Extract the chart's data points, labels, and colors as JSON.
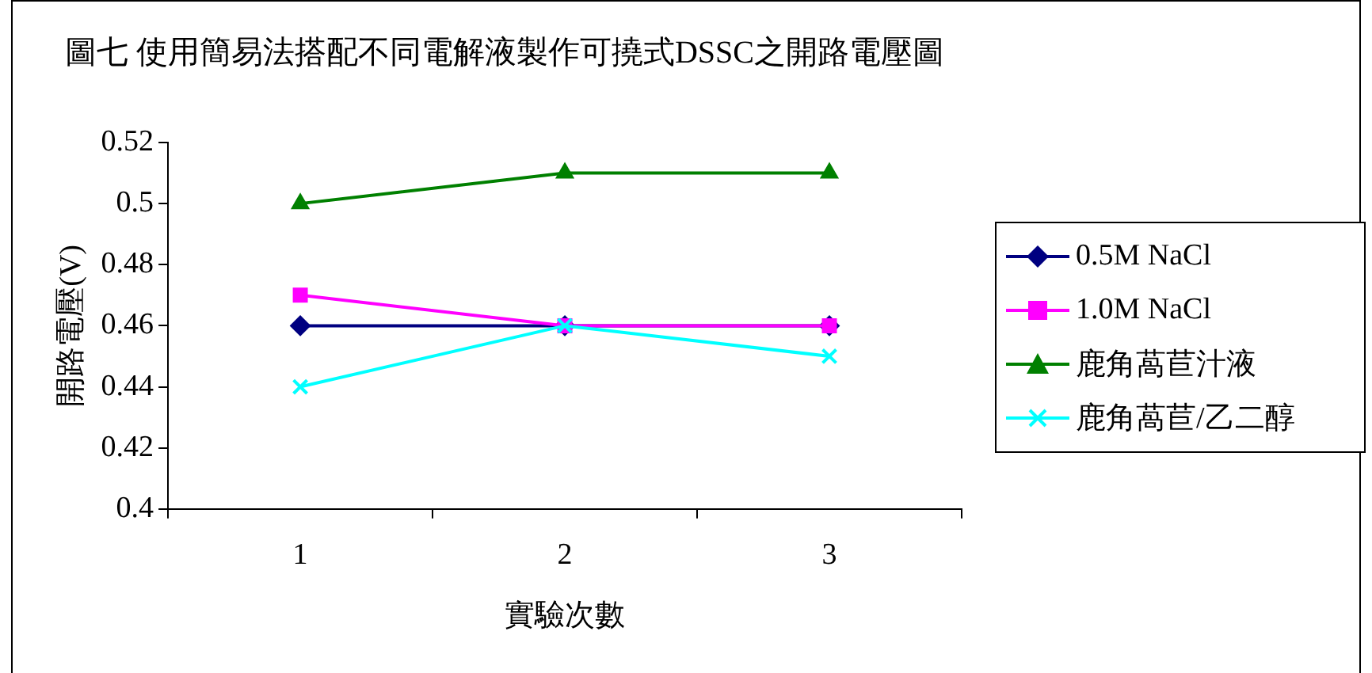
{
  "chart_data": {
    "type": "line",
    "title": "圖七 使用簡易法搭配不同電解液製作可撓式DSSC之開路電壓圖",
    "xlabel": "實驗次數",
    "ylabel": "開路電壓(V)",
    "categories": [
      "1",
      "2",
      "3"
    ],
    "series": [
      {
        "name": "0.5M NaCl",
        "color": "#000080",
        "marker": "diamond",
        "values": [
          0.46,
          0.46,
          0.46
        ]
      },
      {
        "name": "1.0M NaCl",
        "color": "#ff00ff",
        "marker": "square",
        "values": [
          0.47,
          0.46,
          0.46
        ]
      },
      {
        "name": "鹿角萵苣汁液",
        "color": "#008000",
        "marker": "triangle",
        "values": [
          0.5,
          0.51,
          0.51
        ]
      },
      {
        "name": "鹿角萵苣/乙二醇",
        "color": "#00ffff",
        "marker": "cross",
        "values": [
          0.44,
          0.46,
          0.45
        ]
      }
    ],
    "ylim": [
      0.4,
      0.52
    ],
    "yticks": [
      0.4,
      0.42,
      0.44,
      0.46,
      0.48,
      0.5,
      0.52
    ],
    "grid": false,
    "legend": "right",
    "line_style": "solid"
  }
}
